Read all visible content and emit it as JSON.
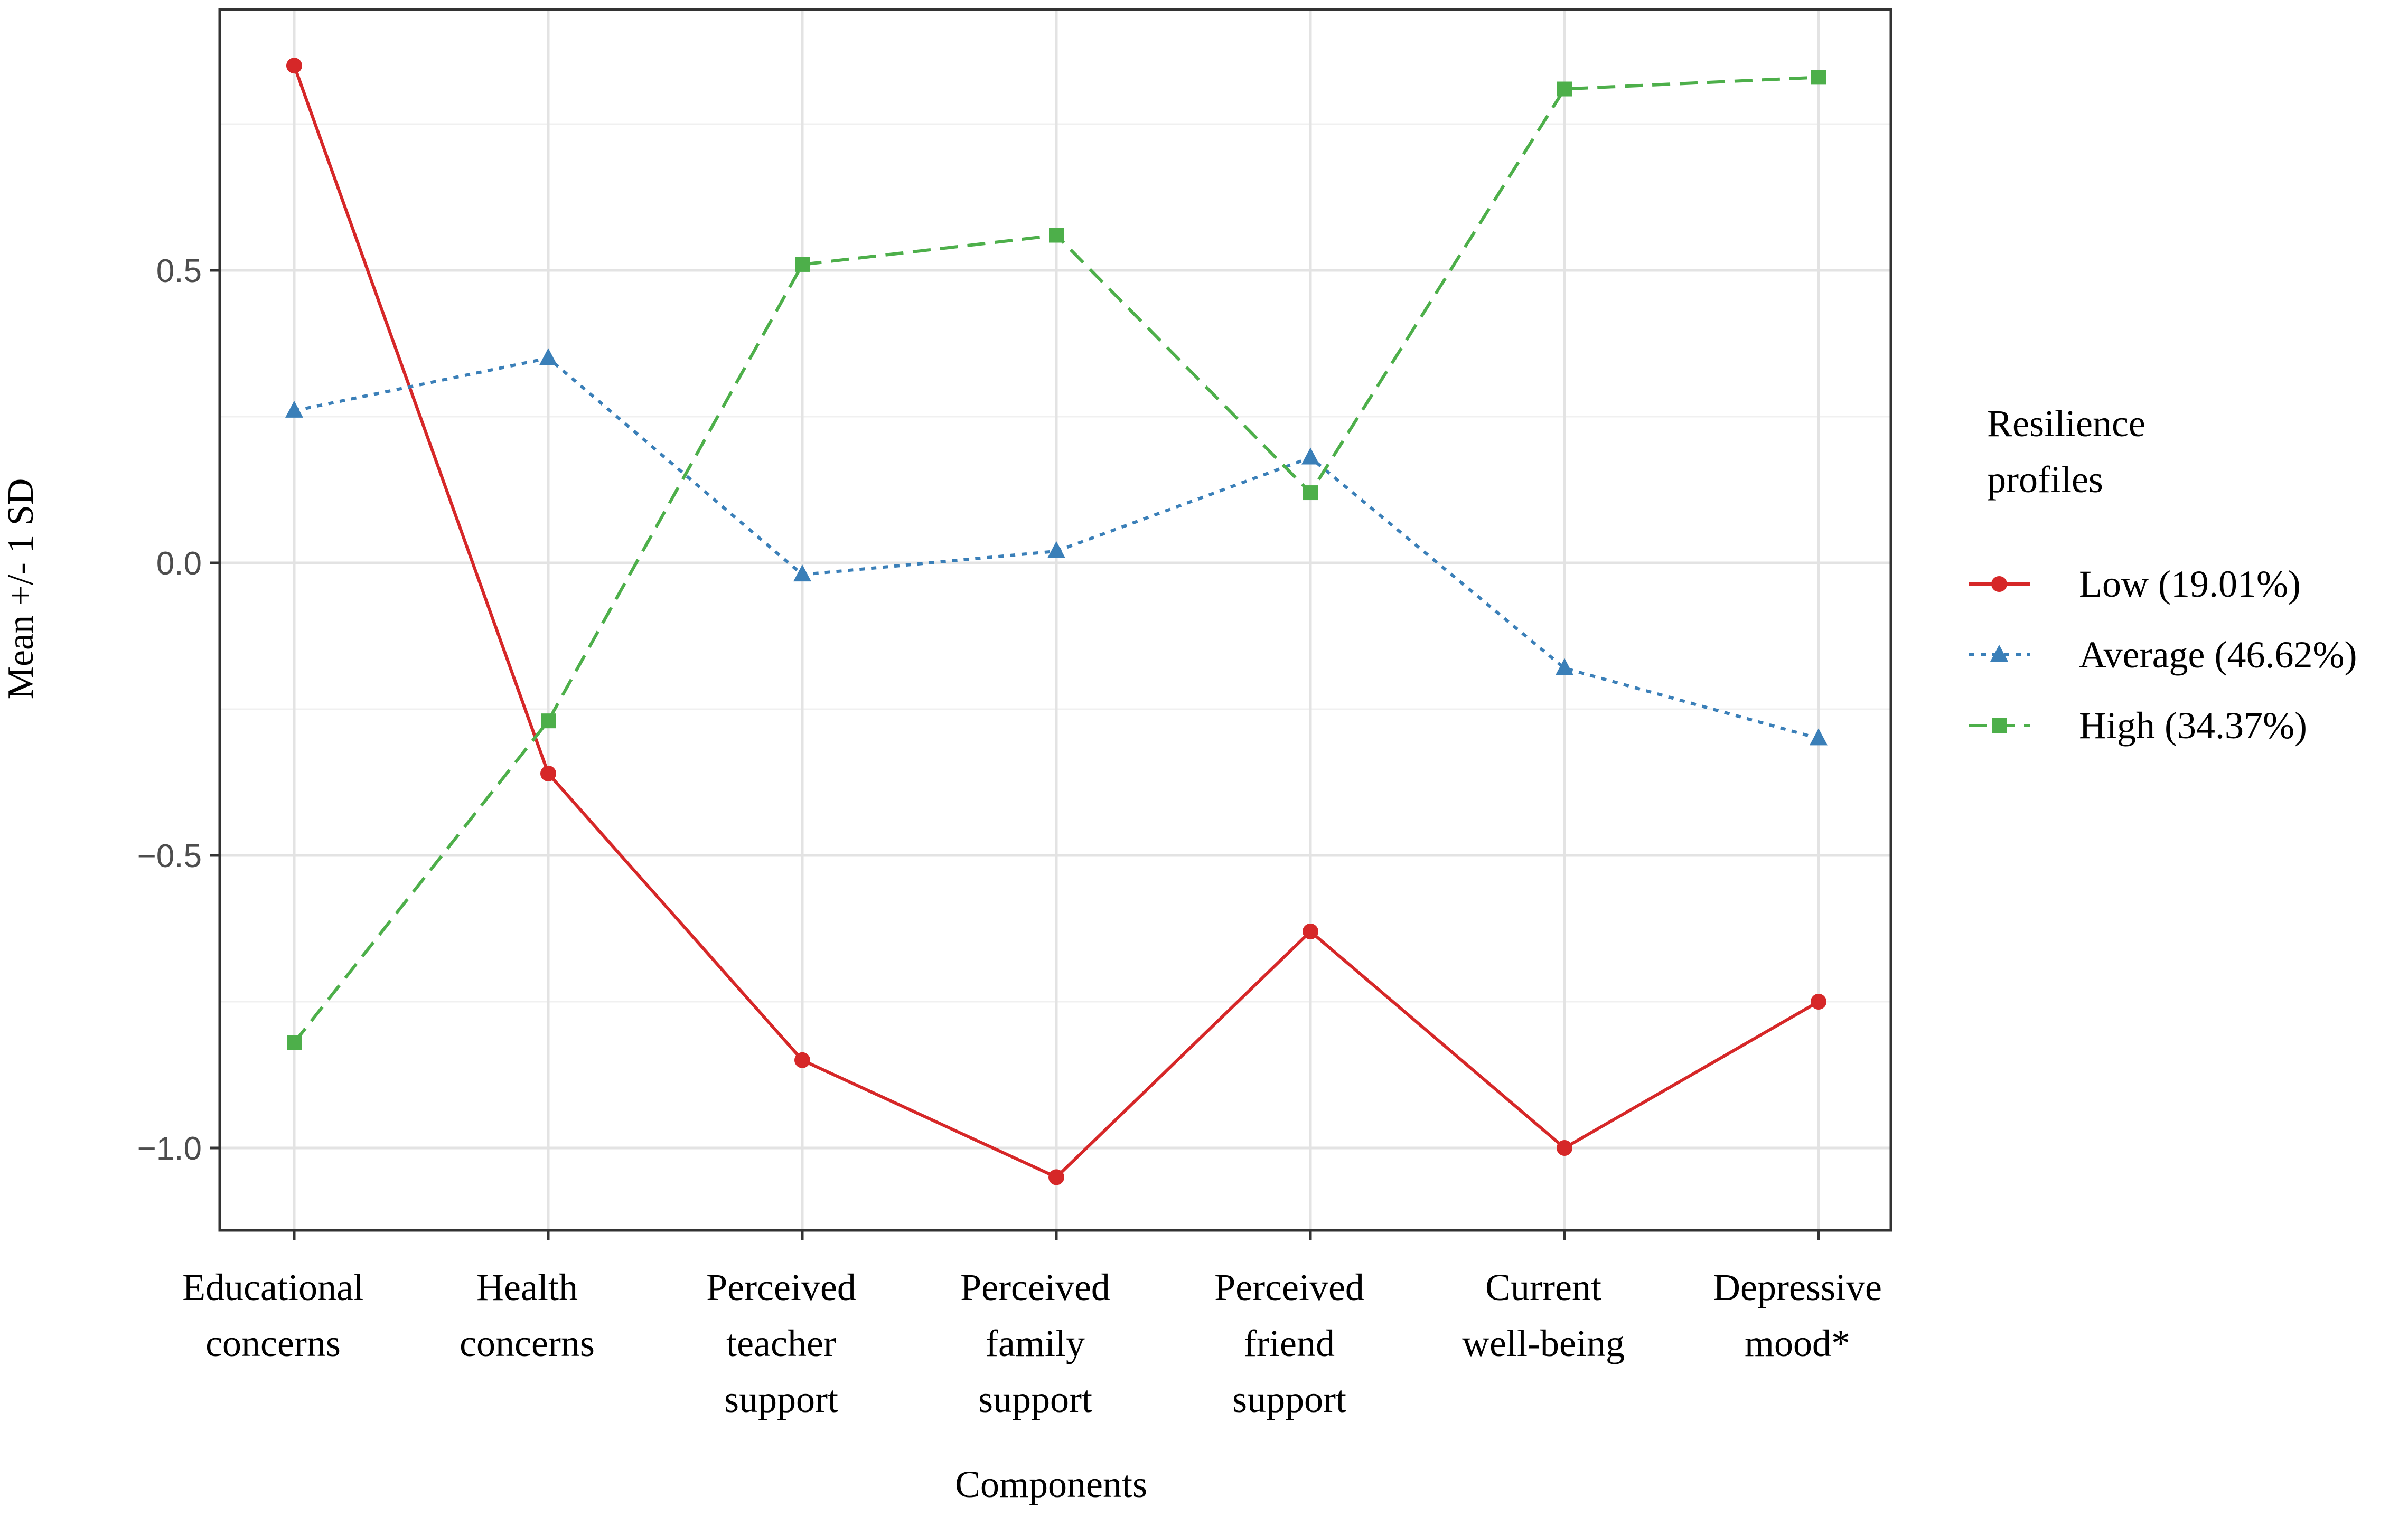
{
  "chart_data": {
    "type": "line",
    "title": "",
    "xlabel": "Components",
    "ylabel": "Mean +/- 1 SD",
    "ylim": [
      -1.15,
      0.95
    ],
    "yticks": [
      0.5,
      0.0,
      -0.5,
      -1.0
    ],
    "ytick_labels": [
      "0.5",
      "0.0",
      "−0.5",
      "−1.0"
    ],
    "grid": true,
    "legend_position": "right",
    "categories": [
      [
        "Educational",
        "concerns"
      ],
      [
        "Health",
        "concerns"
      ],
      [
        "Perceived",
        "teacher",
        "support"
      ],
      [
        "Perceived",
        "family",
        "support"
      ],
      [
        "Perceived",
        "friend",
        "support"
      ],
      [
        "Current",
        "well-being"
      ],
      [
        "Depressive",
        "mood*"
      ]
    ],
    "legend_title": [
      "Resilience",
      "profiles"
    ],
    "series": [
      {
        "name": "Low (19.01%)",
        "color": "#d62728",
        "dash": "solid",
        "marker": "circle",
        "values": [
          0.85,
          -0.36,
          -0.85,
          -1.05,
          -0.63,
          -1.0,
          -0.75
        ]
      },
      {
        "name": "Average (46.62%)",
        "color": "#3a7fb8",
        "dash": "dotted",
        "marker": "triangle",
        "values": [
          0.26,
          0.35,
          -0.02,
          0.02,
          0.18,
          -0.18,
          -0.3
        ]
      },
      {
        "name": "High (34.37%)",
        "color": "#4daf4a",
        "dash": "dashed",
        "marker": "square",
        "values": [
          -0.82,
          -0.27,
          0.51,
          0.56,
          0.12,
          0.81,
          0.83
        ]
      }
    ]
  }
}
